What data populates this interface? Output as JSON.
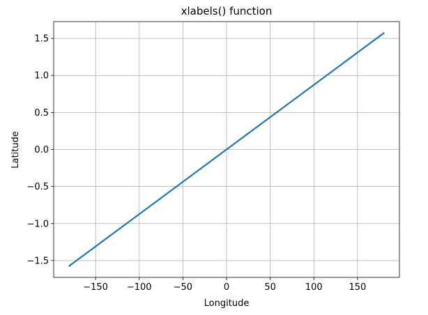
{
  "chart_data": {
    "type": "line",
    "title": "xlabels() function",
    "xlabel": "Longitude",
    "ylabel": "Latitude",
    "xlim": [
      -198,
      198
    ],
    "ylim": [
      -1.727,
      1.727
    ],
    "grid": true,
    "x_ticks": [
      -150,
      -100,
      -50,
      0,
      50,
      100,
      150
    ],
    "x_tick_labels": [
      "−150",
      "−100",
      "−50",
      "0",
      "50",
      "100",
      "150"
    ],
    "y_ticks": [
      -1.5,
      -1.0,
      -0.5,
      0.0,
      0.5,
      1.0,
      1.5
    ],
    "y_tick_labels": [
      "−1.5",
      "−1.0",
      "−0.5",
      "0.0",
      "0.5",
      "1.0",
      "1.5"
    ],
    "series": [
      {
        "color": "#1f77b4",
        "x": [
          -180,
          180
        ],
        "y": [
          -1.5708,
          1.5708
        ]
      }
    ]
  }
}
